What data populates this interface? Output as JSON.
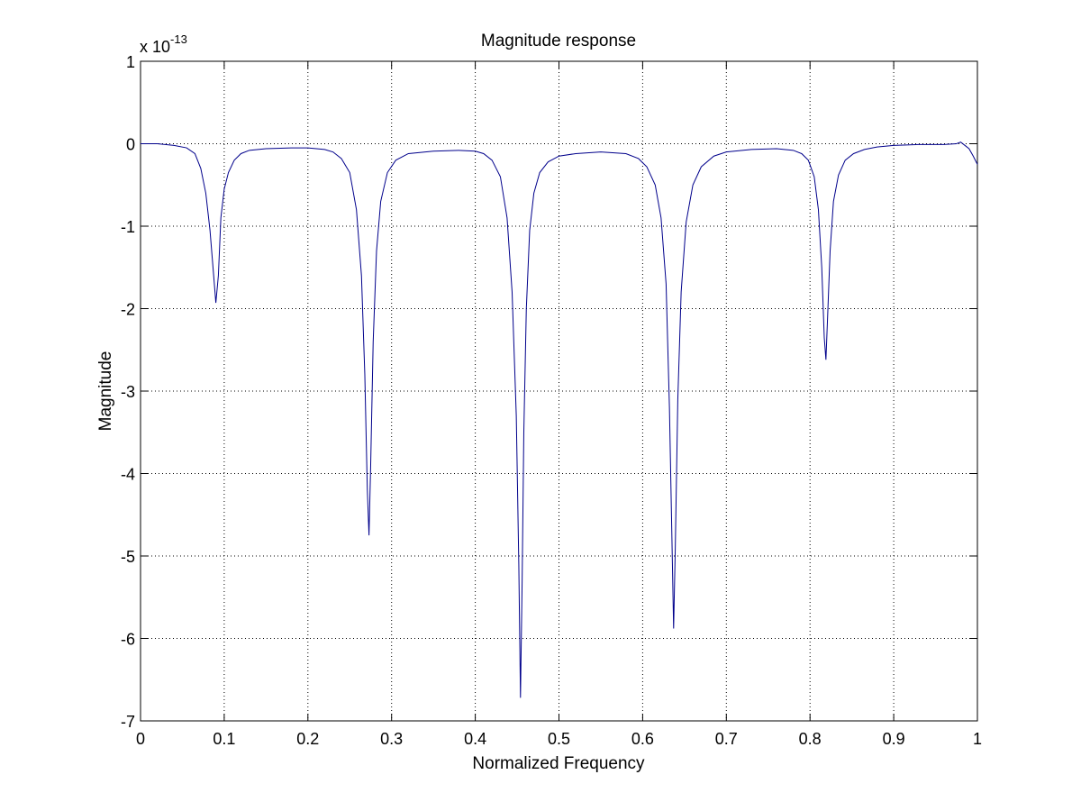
{
  "chart_data": {
    "type": "line",
    "title": "Magnitude response",
    "xlabel": "Normalized Frequency",
    "ylabel": "Magnitude",
    "y_exponent_label": "x 10",
    "y_exponent_power": "-13",
    "xlim": [
      0,
      1
    ],
    "ylim": [
      -7,
      1
    ],
    "grid": true,
    "x_ticks": [
      0,
      0.1,
      0.2,
      0.3,
      0.4,
      0.5,
      0.6,
      0.7,
      0.8,
      0.9,
      1
    ],
    "x_tick_labels": [
      "0",
      "0.1",
      "0.2",
      "0.3",
      "0.4",
      "0.5",
      "0.6",
      "0.7",
      "0.8",
      "0.9",
      "1"
    ],
    "y_ticks": [
      1,
      0,
      -1,
      -2,
      -3,
      -4,
      -5,
      -6,
      -7
    ],
    "y_tick_labels": [
      "1",
      "0",
      "-1",
      "-2",
      "-3",
      "-4",
      "-5",
      "-6",
      "-7"
    ],
    "line_color": "#00008B",
    "series": [
      {
        "x": [
          0,
          0.02,
          0.04,
          0.055,
          0.065,
          0.072,
          0.078,
          0.083,
          0.087,
          0.09,
          0.093,
          0.096,
          0.1,
          0.105,
          0.112,
          0.12,
          0.13,
          0.15,
          0.18,
          0.2,
          0.22,
          0.23,
          0.24,
          0.25,
          0.258,
          0.264,
          0.268,
          0.271,
          0.273,
          0.275,
          0.278,
          0.282,
          0.287,
          0.295,
          0.305,
          0.32,
          0.35,
          0.38,
          0.4,
          0.41,
          0.42,
          0.43,
          0.438,
          0.444,
          0.449,
          0.452,
          0.454,
          0.456,
          0.458,
          0.461,
          0.465,
          0.47,
          0.477,
          0.487,
          0.5,
          0.52,
          0.55,
          0.58,
          0.595,
          0.605,
          0.615,
          0.622,
          0.628,
          0.632,
          0.635,
          0.637,
          0.639,
          0.642,
          0.646,
          0.652,
          0.66,
          0.67,
          0.685,
          0.7,
          0.73,
          0.76,
          0.78,
          0.79,
          0.798,
          0.805,
          0.81,
          0.814,
          0.817,
          0.819,
          0.821,
          0.824,
          0.828,
          0.834,
          0.842,
          0.852,
          0.865,
          0.88,
          0.9,
          0.93,
          0.96,
          0.975,
          0.98,
          0.985,
          0.99,
          0.995,
          1
        ],
        "y": [
          0,
          0,
          -0.02,
          -0.05,
          -0.12,
          -0.3,
          -0.6,
          -1.05,
          -1.55,
          -1.93,
          -1.6,
          -0.9,
          -0.55,
          -0.35,
          -0.2,
          -0.12,
          -0.08,
          -0.06,
          -0.05,
          -0.05,
          -0.07,
          -0.1,
          -0.18,
          -0.35,
          -0.8,
          -1.6,
          -2.8,
          -4.2,
          -4.75,
          -3.9,
          -2.4,
          -1.3,
          -0.7,
          -0.35,
          -0.2,
          -0.12,
          -0.09,
          -0.08,
          -0.09,
          -0.12,
          -0.2,
          -0.4,
          -0.9,
          -1.8,
          -3.3,
          -5.1,
          -6.72,
          -5.3,
          -3.5,
          -2.0,
          -1.05,
          -0.6,
          -0.35,
          -0.22,
          -0.15,
          -0.12,
          -0.1,
          -0.12,
          -0.18,
          -0.28,
          -0.5,
          -0.9,
          -1.7,
          -3.2,
          -4.8,
          -5.88,
          -4.9,
          -3.1,
          -1.8,
          -0.95,
          -0.5,
          -0.28,
          -0.15,
          -0.1,
          -0.07,
          -0.06,
          -0.08,
          -0.12,
          -0.2,
          -0.4,
          -0.8,
          -1.5,
          -2.35,
          -2.62,
          -2.1,
          -1.3,
          -0.7,
          -0.38,
          -0.2,
          -0.12,
          -0.07,
          -0.04,
          -0.02,
          -0.01,
          -0.01,
          0,
          0.02,
          -0.02,
          -0.06,
          -0.15,
          -0.25
        ]
      }
    ]
  }
}
